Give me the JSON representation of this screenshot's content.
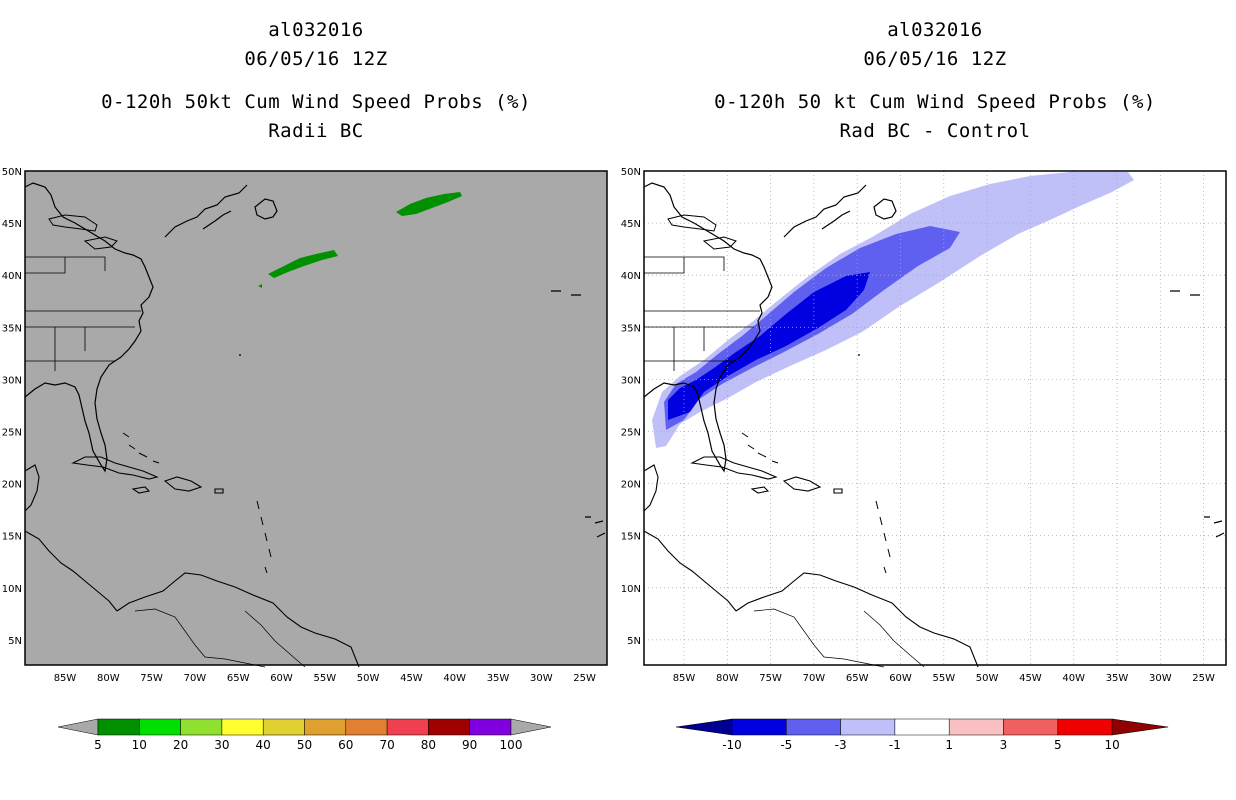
{
  "left_panel": {
    "title": {
      "storm_id": "al032016",
      "datetime": "06/05/16 12Z",
      "product": "0-120h 50kt Cum Wind Speed Probs (%)",
      "subtitle": "Radii BC"
    },
    "background_color": "#a9a9a9",
    "field_color": "#009000",
    "colorbar": {
      "labels": [
        "5",
        "10",
        "20",
        "30",
        "40",
        "50",
        "60",
        "70",
        "80",
        "90",
        "100"
      ],
      "colors": [
        "#009000",
        "#00e000",
        "#90e030",
        "#ffff30",
        "#e0d030",
        "#e0a030",
        "#e08030",
        "#f04050",
        "#a00000",
        "#8000e0"
      ],
      "end_color": "#a9a9a9"
    }
  },
  "right_panel": {
    "title": {
      "storm_id": "al032016",
      "datetime": "06/05/16 12Z",
      "product": "0-120h 50 kt Cum Wind Speed Probs (%)",
      "subtitle": "Rad BC - Control"
    },
    "background_color": "#ffffff",
    "colorbar": {
      "labels": [
        "-10",
        "-5",
        "-3",
        "-1",
        "1",
        "3",
        "5",
        "10"
      ],
      "colors": [
        "#0000e0",
        "#6060f0",
        "#c0c0f8",
        "#ffffff",
        "#f8c0c0",
        "#f06060",
        "#f00000"
      ],
      "low_color": "#000090",
      "high_color": "#900000"
    }
  },
  "axes": {
    "lat_labels": [
      "50N",
      "45N",
      "40N",
      "35N",
      "30N",
      "25N",
      "20N",
      "15N",
      "10N",
      "5N"
    ],
    "lon_labels": [
      "85W",
      "80W",
      "75W",
      "70W",
      "65W",
      "60W",
      "55W",
      "50W",
      "45W",
      "40W",
      "35W",
      "30W",
      "25W"
    ]
  }
}
